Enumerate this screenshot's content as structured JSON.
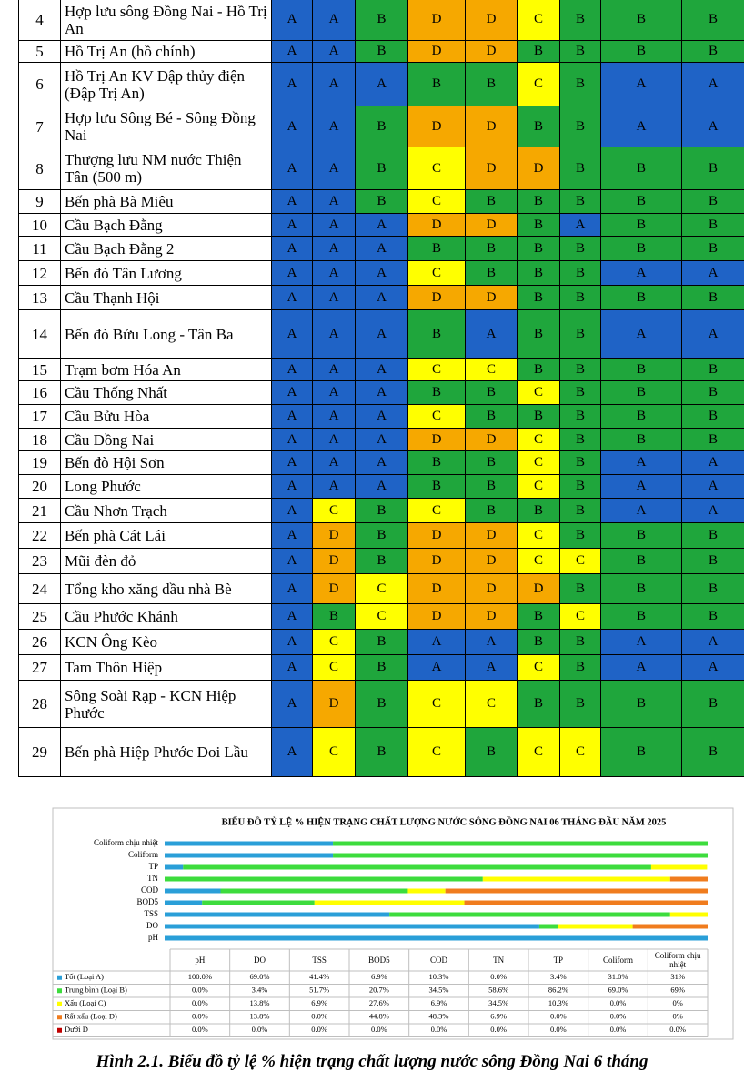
{
  "table": {
    "rows": [
      [
        "4",
        "Hợp lưu sông Đồng Nai - Hồ Trị An",
        "A",
        "A",
        "B",
        "D",
        "D",
        "C",
        "B",
        "B",
        "B"
      ],
      [
        "5",
        "Hồ Trị An (hồ chính)",
        "A",
        "A",
        "B",
        "D",
        "D",
        "B",
        "B",
        "B",
        "B"
      ],
      [
        "6",
        "Hồ Trị An KV Đập thủy điện (Đập Trị An)",
        "A",
        "A",
        "A",
        "B",
        "B",
        "C",
        "B",
        "A",
        "A"
      ],
      [
        "7",
        "Hợp lưu Sông Bé - Sông Đồng Nai",
        "A",
        "A",
        "B",
        "D",
        "D",
        "B",
        "B",
        "A",
        "A"
      ],
      [
        "8",
        "Thượng lưu NM nước Thiện Tân (500 m)",
        "A",
        "A",
        "B",
        "C",
        "D",
        "D",
        "B",
        "B",
        "B"
      ],
      [
        "9",
        "Bến phà Bà Miêu",
        "A",
        "A",
        "B",
        "C",
        "B",
        "B",
        "B",
        "B",
        "B"
      ],
      [
        "10",
        "Cầu Bạch Đằng",
        "A",
        "A",
        "A",
        "D",
        "D",
        "B",
        "A",
        "B",
        "B"
      ],
      [
        "11",
        "Cầu Bạch Đằng 2",
        "A",
        "A",
        "A",
        "B",
        "B",
        "B",
        "B",
        "B",
        "B"
      ],
      [
        "12",
        "Bến đò Tân Lương",
        "A",
        "A",
        "A",
        "C",
        "B",
        "B",
        "B",
        "A",
        "A"
      ],
      [
        "13",
        "Cầu Thạnh Hội",
        "A",
        "A",
        "A",
        "D",
        "D",
        "B",
        "B",
        "B",
        "B"
      ],
      [
        "14",
        "Bến đò Bửu Long - Tân Ba",
        "A",
        "A",
        "A",
        "B",
        "A",
        "B",
        "B",
        "A",
        "A"
      ],
      [
        "15",
        "Trạm bơm Hóa An",
        "A",
        "A",
        "A",
        "C",
        "C",
        "B",
        "B",
        "B",
        "B"
      ],
      [
        "16",
        "Cầu Thống Nhất",
        "A",
        "A",
        "A",
        "B",
        "B",
        "C",
        "B",
        "B",
        "B"
      ],
      [
        "17",
        "Cầu Bửu Hòa",
        "A",
        "A",
        "A",
        "C",
        "B",
        "B",
        "B",
        "B",
        "B"
      ],
      [
        "18",
        "Cầu Đồng Nai",
        "A",
        "A",
        "A",
        "D",
        "D",
        "C",
        "B",
        "B",
        "B"
      ],
      [
        "19",
        "Bến đò Hội Sơn",
        "A",
        "A",
        "A",
        "B",
        "B",
        "C",
        "B",
        "A",
        "A"
      ],
      [
        "20",
        "Long Phước",
        "A",
        "A",
        "A",
        "B",
        "B",
        "C",
        "B",
        "A",
        "A"
      ],
      [
        "21",
        "Cầu Nhơn Trạch",
        "A",
        "C",
        "B",
        "C",
        "B",
        "B",
        "B",
        "A",
        "A"
      ],
      [
        "22",
        "Bến phà Cát Lái",
        "A",
        "D",
        "B",
        "D",
        "D",
        "C",
        "B",
        "B",
        "B"
      ],
      [
        "23",
        "Mũi đèn đỏ",
        "A",
        "D",
        "B",
        "D",
        "D",
        "C",
        "C",
        "B",
        "B"
      ],
      [
        "24",
        "Tổng kho xăng dầu nhà Bè",
        "A",
        "D",
        "C",
        "D",
        "D",
        "D",
        "B",
        "B",
        "B"
      ],
      [
        "25",
        "Cầu Phước Khánh",
        "A",
        "B",
        "C",
        "D",
        "D",
        "B",
        "C",
        "B",
        "B"
      ],
      [
        "26",
        "KCN Ông Kèo",
        "A",
        "C",
        "B",
        "A",
        "A",
        "B",
        "B",
        "A",
        "A"
      ],
      [
        "27",
        "Tam Thôn Hiệp",
        "A",
        "C",
        "B",
        "A",
        "A",
        "C",
        "B",
        "A",
        "A"
      ],
      [
        "28",
        "Sông Soài Rạp - KCN Hiệp Phước",
        "A",
        "D",
        "B",
        "C",
        "C",
        "B",
        "B",
        "B",
        "B"
      ],
      [
        "29",
        "Bến phà Hiệp Phước Doi Lầu",
        "A",
        "C",
        "B",
        "C",
        "B",
        "C",
        "C",
        "B",
        "B"
      ]
    ]
  },
  "chart_data": {
    "type": "bar",
    "stacked": true,
    "orientation": "horizontal",
    "title": "BIỂU ĐỒ TỶ LỆ % HIỆN TRẠNG CHẤT LƯỢNG NƯỚC SÔNG ĐỒNG NAI  06 THÁNG ĐẦU NĂM 2025",
    "categories": [
      "pH",
      "DO",
      "TSS",
      "BOD5",
      "COD",
      "TN",
      "TP",
      "Coliform",
      "Coliform chịu nhiệt"
    ],
    "xlim": [
      0,
      100
    ],
    "series": [
      {
        "name": "Tốt (Loại A)",
        "color": "#2a9fd8",
        "values": [
          100.0,
          69.0,
          41.4,
          6.9,
          10.3,
          0.0,
          3.4,
          31.0,
          31
        ],
        "value_labels": [
          "100.0%",
          "69.0%",
          "41.4%",
          "6.9%",
          "10.3%",
          "0.0%",
          "3.4%",
          "31.0%",
          "31%"
        ]
      },
      {
        "name": "Trung bình (Loại B)",
        "color": "#3ddc3d",
        "values": [
          0.0,
          3.4,
          51.7,
          20.7,
          34.5,
          58.6,
          86.2,
          69.0,
          69
        ],
        "value_labels": [
          "0.0%",
          "3.4%",
          "51.7%",
          "20.7%",
          "34.5%",
          "58.6%",
          "86.2%",
          "69.0%",
          "69%"
        ]
      },
      {
        "name": "Xấu (Loại C)",
        "color": "#ffff00",
        "values": [
          0.0,
          13.8,
          6.9,
          27.6,
          6.9,
          34.5,
          10.3,
          0.0,
          0
        ],
        "value_labels": [
          "0.0%",
          "13.8%",
          "6.9%",
          "27.6%",
          "6.9%",
          "34.5%",
          "10.3%",
          "0.0%",
          "0%"
        ]
      },
      {
        "name": "Rất xấu (Loại D)",
        "color": "#f07c1e",
        "values": [
          0.0,
          13.8,
          0.0,
          44.8,
          48.3,
          6.9,
          0.0,
          0.0,
          0
        ],
        "value_labels": [
          "0.0%",
          "13.8%",
          "0.0%",
          "44.8%",
          "48.3%",
          "6.9%",
          "0.0%",
          "0.0%",
          "0%"
        ]
      },
      {
        "name": "Dưới D",
        "color": "#c00000",
        "values": [
          0.0,
          0.0,
          0.0,
          0.0,
          0.0,
          0.0,
          0.0,
          0.0,
          0.0
        ],
        "value_labels": [
          "0.0%",
          "0.0%",
          "0.0%",
          "0.0%",
          "0.0%",
          "0.0%",
          "0.0%",
          "0.0%",
          "0.0%"
        ]
      }
    ]
  },
  "caption": "Hình 2.1.  Biểu đồ tỷ lệ % hiện trạng chất lượng nước sông Đồng Nai 6 tháng"
}
